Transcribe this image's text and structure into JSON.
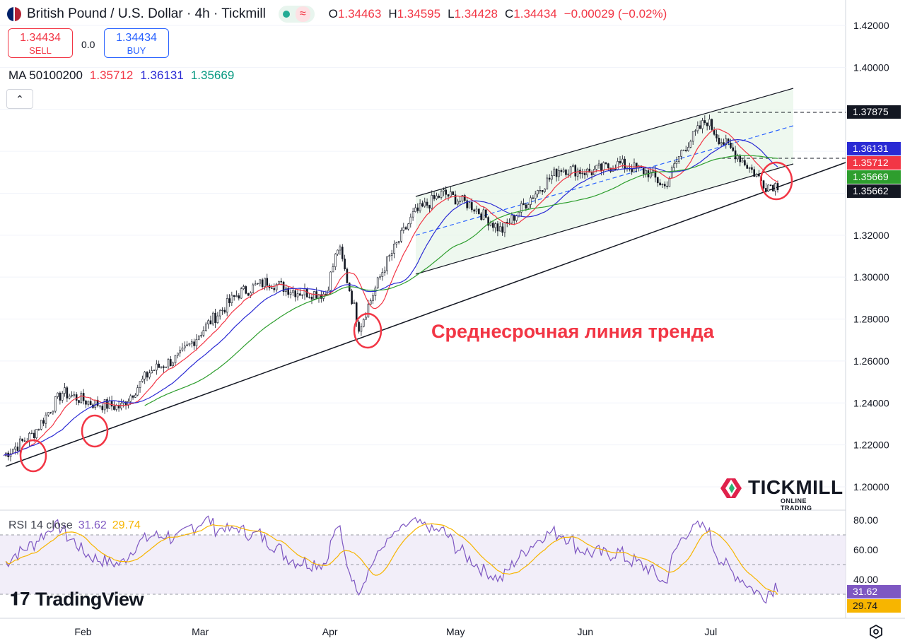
{
  "header": {
    "title": "British Pound / U.S. Dollar · 4h · Tickmill",
    "status_icon": "market-open-dot",
    "status_badge": "≈",
    "ohlc": {
      "o_label": "O",
      "o": "1.34463",
      "h_label": "H",
      "h": "1.34595",
      "l_label": "L",
      "l": "1.34428",
      "c_label": "C",
      "c": "1.34434",
      "change": "−0.00029 (−0.02%)"
    }
  },
  "trade": {
    "sell_price": "1.34434",
    "sell_label": "SELL",
    "spread": "0.0",
    "buy_price": "1.34434",
    "buy_label": "BUY"
  },
  "ma_legend": {
    "label": "MA 50100200",
    "ma50": "1.35712",
    "ma100": "1.36131",
    "ma200": "1.35669"
  },
  "collapse_icon": "chevron-up-icon",
  "rsi_legend": {
    "label": "RSI 14 close",
    "rsi": "31.62",
    "rsi_ma": "29.74"
  },
  "annotation": "Среднесрочная линия тренда",
  "branding": {
    "tradingview": "TradingView",
    "broker": "TICKMILL",
    "broker_sub": "ONLINE TRADING"
  },
  "colors": {
    "up": "#089981",
    "down": "#f23645",
    "ma50": "#f23645",
    "ma100": "#2a2ad4",
    "ma200": "#2e9e2e",
    "rsi": "#7e57c2",
    "rsi_ma": "#f7b500",
    "annotation": "#f23645",
    "channel_fill": "#e8f5e9"
  },
  "chart_data": [
    {
      "type": "candlestick",
      "symbol": "GBPUSD",
      "interval": "4h",
      "title": "British Pound / U.S. Dollar · 4h · Tickmill",
      "ylim": [
        1.19,
        1.432
      ],
      "y_ticks": [
        "1.42000",
        "1.40000",
        "1.38000",
        "1.36000",
        "1.34000",
        "1.32000",
        "1.30000",
        "1.28000",
        "1.26000",
        "1.24000",
        "1.22000",
        "1.20000"
      ],
      "x_ticks": [
        "Feb",
        "Mar",
        "Apr",
        "May",
        "Jun",
        "Jul"
      ],
      "price_path": [
        {
          "date": "2025-01-13",
          "value": 1.215
        },
        {
          "date": "2025-01-20",
          "value": 1.225
        },
        {
          "date": "2025-01-27",
          "value": 1.245
        },
        {
          "date": "2025-02-03",
          "value": 1.24
        },
        {
          "date": "2025-02-10",
          "value": 1.238
        },
        {
          "date": "2025-02-17",
          "value": 1.255
        },
        {
          "date": "2025-02-24",
          "value": 1.262
        },
        {
          "date": "2025-03-03",
          "value": 1.278
        },
        {
          "date": "2025-03-10",
          "value": 1.292
        },
        {
          "date": "2025-03-17",
          "value": 1.298
        },
        {
          "date": "2025-03-24",
          "value": 1.293
        },
        {
          "date": "2025-03-31",
          "value": 1.292
        },
        {
          "date": "2025-04-03",
          "value": 1.315
        },
        {
          "date": "2025-04-08",
          "value": 1.276
        },
        {
          "date": "2025-04-14",
          "value": 1.305
        },
        {
          "date": "2025-04-21",
          "value": 1.33
        },
        {
          "date": "2025-04-28",
          "value": 1.34
        },
        {
          "date": "2025-05-05",
          "value": 1.334
        },
        {
          "date": "2025-05-12",
          "value": 1.322
        },
        {
          "date": "2025-05-19",
          "value": 1.338
        },
        {
          "date": "2025-05-26",
          "value": 1.352
        },
        {
          "date": "2025-06-02",
          "value": 1.35
        },
        {
          "date": "2025-06-09",
          "value": 1.354
        },
        {
          "date": "2025-06-16",
          "value": 1.35
        },
        {
          "date": "2025-06-20",
          "value": 1.343
        },
        {
          "date": "2025-06-24",
          "value": 1.36
        },
        {
          "date": "2025-06-30",
          "value": 1.375
        },
        {
          "date": "2025-07-03",
          "value": 1.366
        },
        {
          "date": "2025-07-08",
          "value": 1.357
        },
        {
          "date": "2025-07-14",
          "value": 1.344
        }
      ],
      "moving_averages": [
        {
          "name": "MA 50",
          "last": 1.35712
        },
        {
          "name": "MA 100",
          "last": 1.36131
        },
        {
          "name": "MA 200",
          "last": 1.35669
        }
      ],
      "price_labels": [
        "1.37875",
        "1.36131",
        "1.35712",
        "1.35669",
        "1.35662"
      ],
      "annotation": "Среднесрочная линия тренда",
      "drawings": [
        "rising channel",
        "medium-term trend line",
        "touch-point circles"
      ]
    },
    {
      "type": "line",
      "title": "RSI 14 close",
      "ylim": [
        20,
        86
      ],
      "y_ticks": [
        "80.00",
        "60.00",
        "40.00"
      ],
      "bands": [
        30,
        50,
        70
      ],
      "series": [
        {
          "name": "RSI",
          "last": 31.62
        },
        {
          "name": "RSI MA",
          "last": 29.74
        }
      ]
    }
  ]
}
